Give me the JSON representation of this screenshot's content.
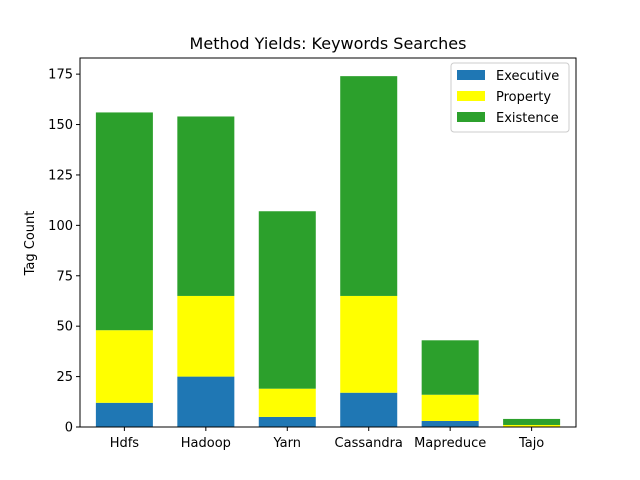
{
  "chart_data": {
    "type": "bar",
    "stacked": true,
    "title": "Method Yields: Keywords Searches",
    "xlabel": "",
    "ylabel": "Tag Count",
    "categories": [
      "Hdfs",
      "Hadoop",
      "Yarn",
      "Cassandra",
      "Mapreduce",
      "Tajo"
    ],
    "series": [
      {
        "name": "Executive",
        "color": "#1f77b4",
        "values": [
          12,
          25,
          5,
          17,
          3,
          0
        ]
      },
      {
        "name": "Property",
        "color": "#ffff00",
        "values": [
          36,
          40,
          14,
          48,
          13,
          1
        ]
      },
      {
        "name": "Existence",
        "color": "#2ca02c",
        "values": [
          108,
          89,
          88,
          109,
          27,
          3
        ]
      }
    ],
    "ylim": [
      0,
      183
    ],
    "yticks": [
      0,
      25,
      50,
      75,
      100,
      125,
      150,
      175
    ],
    "grid": false,
    "legend_position": "top-right"
  }
}
